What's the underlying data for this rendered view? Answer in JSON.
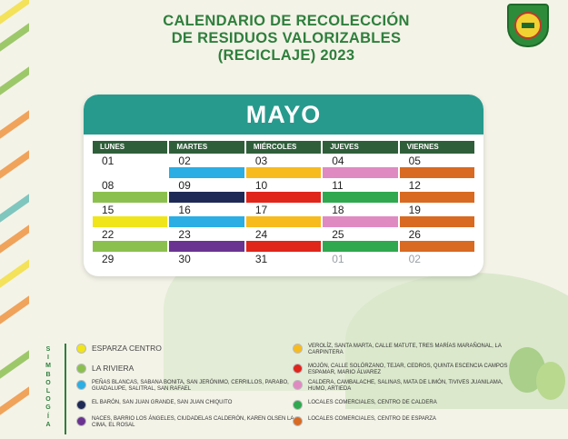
{
  "title": {
    "line1": "CALENDARIO DE RECOLECCIÓN",
    "line2": "DE RESIDUOS VALORIZABLES",
    "line3": "(RECICLAJE) 2023"
  },
  "month": "MAYO",
  "weekdays": [
    "LUNES",
    "MARTES",
    "MIÉRCOLES",
    "JUEVES",
    "VIERNES"
  ],
  "colors": {
    "yellow": "#f0e51a",
    "lightgreen": "#8bc04f",
    "cyan": "#2aaee4",
    "navy": "#1e2a55",
    "purple": "#6a3391",
    "gold": "#f7bb1e",
    "red": "#e0251b",
    "pink": "#e08ac2",
    "green": "#2fa84f",
    "orange": "#d86a22"
  },
  "weeks": [
    [
      {
        "day": "01",
        "color": ""
      },
      {
        "day": "02",
        "color": "cyan"
      },
      {
        "day": "03",
        "color": "gold"
      },
      {
        "day": "04",
        "color": "pink"
      },
      {
        "day": "05",
        "color": "orange"
      }
    ],
    [
      {
        "day": "08",
        "color": "lightgreen"
      },
      {
        "day": "09",
        "color": "navy"
      },
      {
        "day": "10",
        "color": "red"
      },
      {
        "day": "11",
        "color": "green"
      },
      {
        "day": "12",
        "color": "orange"
      }
    ],
    [
      {
        "day": "15",
        "color": "yellow"
      },
      {
        "day": "16",
        "color": "cyan"
      },
      {
        "day": "17",
        "color": "gold"
      },
      {
        "day": "18",
        "color": "pink"
      },
      {
        "day": "19",
        "color": "orange"
      }
    ],
    [
      {
        "day": "22",
        "color": "lightgreen"
      },
      {
        "day": "23",
        "color": "purple"
      },
      {
        "day": "24",
        "color": "red"
      },
      {
        "day": "25",
        "color": "green"
      },
      {
        "day": "26",
        "color": "orange"
      }
    ],
    [
      {
        "day": "29",
        "color": ""
      },
      {
        "day": "30",
        "color": ""
      },
      {
        "day": "31",
        "color": ""
      },
      {
        "day": "01",
        "color": "",
        "muted": true
      },
      {
        "day": "02",
        "color": "",
        "muted": true
      }
    ]
  ],
  "legend_label": "SIMBOLOGÍA",
  "legend_left": [
    {
      "color": "yellow",
      "text": "ESPARZA CENTRO",
      "big": true
    },
    {
      "color": "lightgreen",
      "text": "LA RIVIERA",
      "big": true
    },
    {
      "color": "cyan",
      "text": "PEÑAS BLANCAS, SABANA BONITA, SAN JERÓNIMO, CERRILLOS, PARABO, GUADALUPE, SALITRAL, SAN RAFAEL"
    },
    {
      "color": "navy",
      "text": "EL BARÓN, SAN JUAN GRANDE, SAN JUAN CHIQUITO"
    },
    {
      "color": "purple",
      "text": "NACES, BARRIO LOS ÁNGELES, CIUDADELAS CALDERÓN, KAREN OLSEN LA CIMA, EL ROSAL"
    }
  ],
  "legend_right": [
    {
      "color": "gold",
      "text": "VEROLÍZ, SANTA MARTA, CALLE MATUTE, TRES MARÍAS MARAÑONAL, LA CARPINTERA"
    },
    {
      "color": "red",
      "text": "MOJÓN, CALLE SOLÓRZANO, TEJAR, CEDROS, QUINTA ESCENCIA CAMPOS ESPAMAR, MARIO ÁLVAREZ"
    },
    {
      "color": "pink",
      "text": "CALDERA, CAMBALACHE, SALINAS, MATA DE LIMÓN, TIVIVES JUANILAMA, HUMO, ARTIEDA"
    },
    {
      "color": "green",
      "text": "LOCALES COMERCIALES, CENTRO DE CALDERA"
    },
    {
      "color": "orange",
      "text": "LOCALES COMERCIALES, CENTRO DE ESPARZA"
    }
  ]
}
